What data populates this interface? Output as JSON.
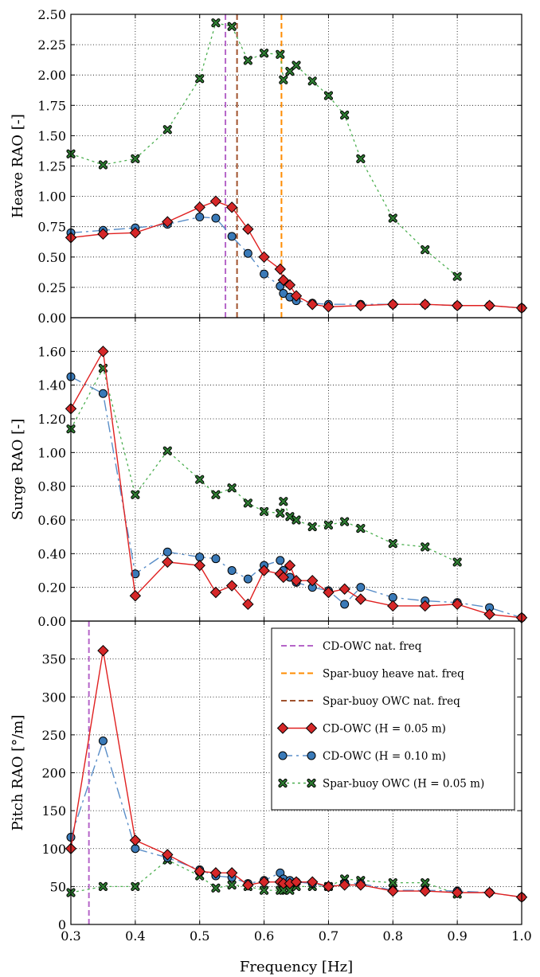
{
  "chart_data": [
    {
      "type": "line",
      "panel": "heave",
      "ylabel": "Heave RAO [-]",
      "xlim": [
        0.3,
        1.0
      ],
      "ylim": [
        0,
        2.5
      ],
      "yticks": [
        "0.00",
        "0.25",
        "0.50",
        "0.75",
        "1.00",
        "1.25",
        "1.50",
        "1.75",
        "2.00",
        "2.25",
        "2.50"
      ],
      "grid": true,
      "vlines": [
        {
          "name": "CD-OWC nat. freq",
          "x": 0.54,
          "color": "#b565c8"
        },
        {
          "name": "Spar-buoy OWC nat. freq",
          "x": 0.558,
          "color": "#a0522d"
        },
        {
          "name": "Spar-buoy heave nat. freq",
          "x": 0.627,
          "color": "#ff8c00"
        }
      ],
      "series": [
        {
          "name": "CD-OWC (H = 0.05 m)",
          "x": [
            0.3,
            0.35,
            0.4,
            0.45,
            0.5,
            0.525,
            0.55,
            0.575,
            0.6,
            0.625,
            0.63,
            0.64,
            0.65,
            0.675,
            0.7,
            0.75,
            0.8,
            0.85,
            0.9,
            0.95,
            1.0
          ],
          "y": [
            0.66,
            0.69,
            0.7,
            0.79,
            0.91,
            0.96,
            0.91,
            0.73,
            0.5,
            0.4,
            0.31,
            0.27,
            0.18,
            0.11,
            0.09,
            0.1,
            0.11,
            0.11,
            0.1,
            0.1,
            0.08
          ]
        },
        {
          "name": "CD-OWC (H = 0.10 m)",
          "x": [
            0.3,
            0.35,
            0.4,
            0.45,
            0.5,
            0.525,
            0.55,
            0.575,
            0.6,
            0.625,
            0.63,
            0.64,
            0.65,
            0.675,
            0.7,
            0.75,
            0.8,
            0.85,
            0.9,
            0.95,
            1.0
          ],
          "y": [
            0.7,
            0.72,
            0.74,
            0.77,
            0.83,
            0.82,
            0.67,
            0.53,
            0.36,
            0.26,
            0.2,
            0.17,
            0.14,
            0.12,
            0.11,
            0.11,
            0.11,
            0.11,
            0.1,
            0.1,
            0.08
          ]
        },
        {
          "name": "Spar-buoy OWC (H = 0.05 m)",
          "x": [
            0.3,
            0.35,
            0.4,
            0.45,
            0.5,
            0.525,
            0.55,
            0.575,
            0.6,
            0.625,
            0.63,
            0.64,
            0.65,
            0.675,
            0.7,
            0.725,
            0.75,
            0.8,
            0.85,
            0.9
          ],
          "y": [
            1.35,
            1.26,
            1.31,
            1.55,
            1.97,
            2.43,
            2.4,
            2.12,
            2.18,
            2.17,
            1.96,
            2.03,
            2.08,
            1.95,
            1.83,
            1.67,
            1.31,
            0.82,
            0.56,
            0.34
          ]
        }
      ]
    },
    {
      "type": "line",
      "panel": "surge",
      "ylabel": "Surge RAO [-]",
      "xlim": [
        0.3,
        1.0
      ],
      "ylim": [
        0,
        1.8
      ],
      "yticks": [
        "0.00",
        "0.20",
        "0.40",
        "0.60",
        "0.80",
        "1.00",
        "1.20",
        "1.40",
        "1.60"
      ],
      "grid": true,
      "series": [
        {
          "name": "CD-OWC (H = 0.05 m)",
          "x": [
            0.3,
            0.35,
            0.4,
            0.45,
            0.5,
            0.525,
            0.55,
            0.575,
            0.6,
            0.625,
            0.63,
            0.64,
            0.65,
            0.675,
            0.7,
            0.725,
            0.75,
            0.8,
            0.85,
            0.9,
            0.95,
            1.0
          ],
          "y": [
            1.26,
            1.6,
            0.15,
            0.35,
            0.33,
            0.17,
            0.21,
            0.1,
            0.3,
            0.28,
            0.26,
            0.33,
            0.24,
            0.24,
            0.17,
            0.19,
            0.13,
            0.09,
            0.09,
            0.1,
            0.04,
            0.02
          ]
        },
        {
          "name": "CD-OWC (H = 0.10 m)",
          "x": [
            0.3,
            0.35,
            0.4,
            0.45,
            0.5,
            0.525,
            0.55,
            0.575,
            0.6,
            0.625,
            0.63,
            0.64,
            0.65,
            0.675,
            0.7,
            0.725,
            0.75,
            0.8,
            0.85,
            0.9,
            0.95,
            1.0
          ],
          "y": [
            1.45,
            1.35,
            0.28,
            0.41,
            0.38,
            0.37,
            0.3,
            0.25,
            0.33,
            0.36,
            0.3,
            0.26,
            0.23,
            0.2,
            0.18,
            0.1,
            0.2,
            0.14,
            0.12,
            0.11,
            0.08,
            0.02
          ]
        },
        {
          "name": "Spar-buoy OWC (H = 0.05 m)",
          "x": [
            0.3,
            0.35,
            0.4,
            0.45,
            0.5,
            0.525,
            0.55,
            0.575,
            0.6,
            0.625,
            0.63,
            0.64,
            0.65,
            0.675,
            0.7,
            0.725,
            0.75,
            0.8,
            0.85,
            0.9
          ],
          "y": [
            1.14,
            1.5,
            0.75,
            1.01,
            0.84,
            0.75,
            0.79,
            0.7,
            0.65,
            0.64,
            0.71,
            0.62,
            0.6,
            0.56,
            0.57,
            0.59,
            0.55,
            0.46,
            0.44,
            0.35
          ]
        }
      ]
    },
    {
      "type": "line",
      "panel": "pitch",
      "ylabel": "Pitch RAO [°/m]",
      "xlabel": "Frequency [Hz]",
      "xlim": [
        0.3,
        1.0
      ],
      "ylim": [
        0,
        400
      ],
      "xticks": [
        "0.3",
        "0.4",
        "0.5",
        "0.6",
        "0.7",
        "0.8",
        "0.9",
        "1.0"
      ],
      "yticks": [
        "0",
        "50",
        "100",
        "150",
        "200",
        "250",
        "300",
        "350"
      ],
      "grid": true,
      "legend": "top-right",
      "vlines": [
        {
          "name": "CD-OWC nat. freq",
          "x": 0.328,
          "color": "#b565c8"
        }
      ],
      "series": [
        {
          "name": "CD-OWC (H = 0.05 m)",
          "x": [
            0.3,
            0.35,
            0.4,
            0.45,
            0.5,
            0.525,
            0.55,
            0.575,
            0.6,
            0.625,
            0.63,
            0.64,
            0.65,
            0.675,
            0.7,
            0.725,
            0.75,
            0.8,
            0.85,
            0.9,
            0.95,
            1.0
          ],
          "y": [
            100,
            361,
            111,
            92,
            70,
            68,
            68,
            52,
            56,
            56,
            54,
            54,
            56,
            56,
            50,
            52,
            52,
            44,
            44,
            42,
            42,
            36
          ]
        },
        {
          "name": "CD-OWC (H = 0.10 m)",
          "x": [
            0.3,
            0.35,
            0.4,
            0.45,
            0.5,
            0.525,
            0.55,
            0.575,
            0.6,
            0.625,
            0.63,
            0.64,
            0.65,
            0.675,
            0.7,
            0.725,
            0.75,
            0.8,
            0.85,
            0.9,
            0.95,
            1.0
          ],
          "y": [
            115,
            242,
            100,
            88,
            72,
            64,
            62,
            54,
            58,
            68,
            60,
            58,
            56,
            54,
            50,
            54,
            54,
            45,
            45,
            44,
            42,
            36
          ]
        },
        {
          "name": "Spar-buoy OWC (H = 0.05 m)",
          "x": [
            0.3,
            0.35,
            0.4,
            0.45,
            0.5,
            0.525,
            0.55,
            0.575,
            0.6,
            0.625,
            0.63,
            0.64,
            0.65,
            0.675,
            0.7,
            0.725,
            0.75,
            0.8,
            0.85,
            0.9
          ],
          "y": [
            42,
            50,
            50,
            85,
            64,
            48,
            52,
            50,
            45,
            45,
            45,
            45,
            50,
            50,
            50,
            60,
            58,
            55,
            55,
            40
          ]
        }
      ]
    }
  ],
  "legend": {
    "items": [
      {
        "label": "CD-OWC nat. freq",
        "kind": "vline",
        "color": "#b565c8"
      },
      {
        "label": "Spar-buoy heave nat. freq",
        "kind": "vline",
        "color": "#ff8c00"
      },
      {
        "label": "Spar-buoy OWC nat. freq",
        "kind": "vline",
        "color": "#a0522d"
      },
      {
        "label": "CD-OWC (H = 0.05 m)",
        "kind": "series",
        "series": 0
      },
      {
        "label": "CD-OWC (H = 0.10 m)",
        "kind": "series",
        "series": 1
      },
      {
        "label": "Spar-buoy OWC (H = 0.05 m)",
        "kind": "series",
        "series": 2
      }
    ]
  },
  "series_style": [
    {
      "line": "#e02020",
      "marker": "diamond",
      "fill": "#d62728",
      "dash": ""
    },
    {
      "line": "#5a8ec8",
      "marker": "circle",
      "fill": "#3a7ab8",
      "dash": "14 5 3 5"
    },
    {
      "line": "#4caf50",
      "marker": "cross",
      "fill": "#2e7d32",
      "dash": "3 4"
    }
  ]
}
